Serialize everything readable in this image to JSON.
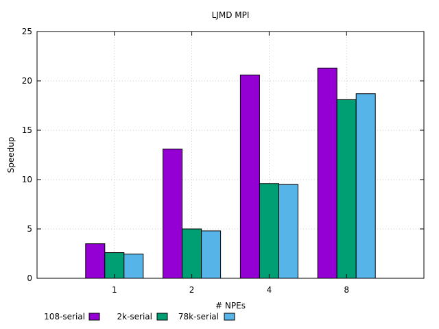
{
  "chart_data": {
    "type": "bar",
    "title": "LJMD MPI",
    "xlabel": "# NPEs",
    "ylabel": "Speedup",
    "categories": [
      "1",
      "2",
      "4",
      "8"
    ],
    "ylim": [
      0,
      25
    ],
    "yticks": [
      0,
      5,
      10,
      15,
      20,
      25
    ],
    "grid": true,
    "legend_position": "bottom-left",
    "series": [
      {
        "name": "108-serial",
        "color": "#9400d3",
        "values": [
          3.5,
          13.1,
          20.6,
          21.3
        ]
      },
      {
        "name": "2k-serial",
        "color": "#009e73",
        "values": [
          2.6,
          5.0,
          9.6,
          18.1
        ]
      },
      {
        "name": "78k-serial",
        "color": "#56b4e9",
        "values": [
          2.45,
          4.8,
          9.5,
          18.7
        ]
      }
    ]
  }
}
